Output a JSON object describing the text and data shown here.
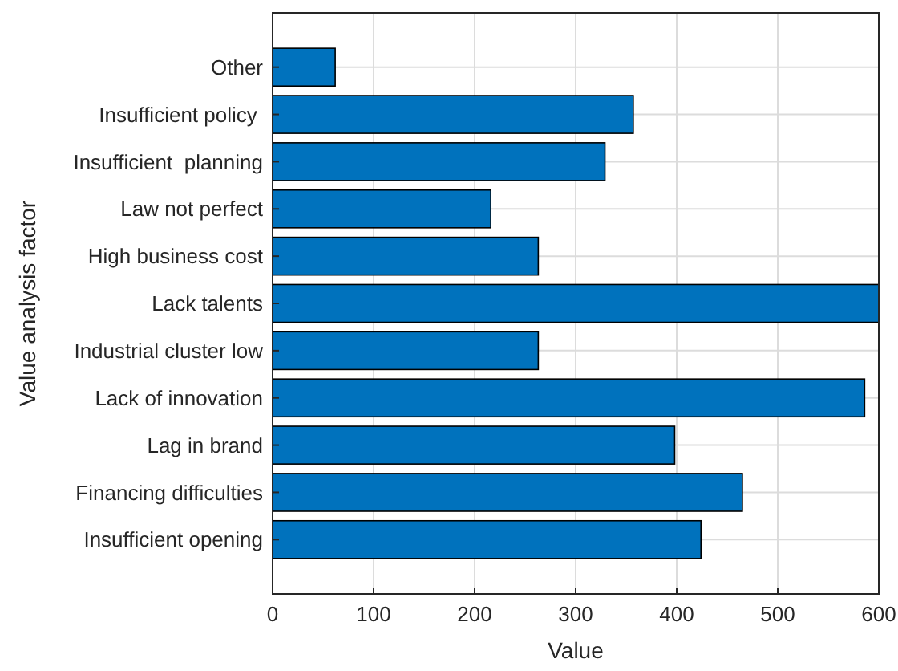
{
  "chart_data": {
    "type": "bar",
    "orientation": "horizontal",
    "xlabel": "Value",
    "ylabel": "Value analysis factor",
    "categories": [
      "Other",
      "Insufficient policy ",
      "Insufficient  planning",
      "Law not perfect",
      "High business cost",
      "Lack talents",
      "Industrial cluster low",
      "Lack of innovation",
      "Lag in brand",
      "Financing difficulties",
      "Insufficient opening"
    ],
    "values": [
      62,
      357,
      329,
      216,
      263,
      600,
      263,
      586,
      398,
      465,
      424
    ],
    "color": "#0072bd",
    "xlim": [
      0,
      600
    ],
    "xticks": [
      0,
      100,
      200,
      300,
      400,
      500,
      600
    ],
    "grid": true
  }
}
